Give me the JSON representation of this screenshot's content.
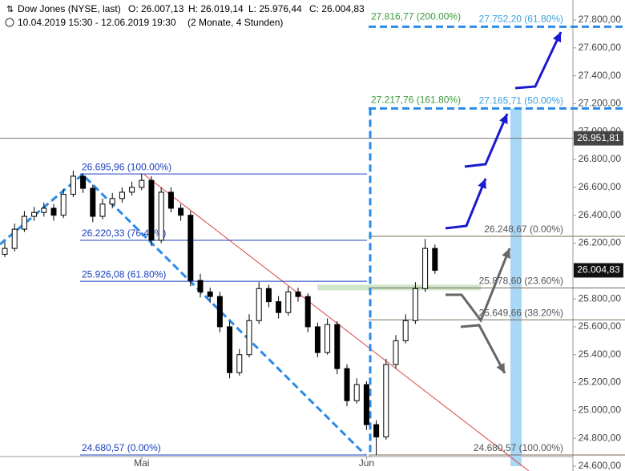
{
  "chart_data": {
    "type": "candlestick",
    "title": "Dow Jones (NYSE, last)",
    "ohlc_header": [
      "O: 26.007,13",
      "H: 26.019,14",
      "L: 25.976,44",
      "C: 26.004,83"
    ],
    "subtitle": "10.04.2019 15:30 - 12.06.2019 19:30",
    "period": "(2 Monate, 4 Stunden)",
    "categories": [
      null,
      null,
      null,
      null,
      null,
      null,
      null,
      null,
      null,
      null,
      null,
      null,
      null,
      null,
      "Mai",
      null,
      null,
      null,
      null,
      null,
      null,
      null,
      null,
      null,
      null,
      null,
      null,
      null,
      null,
      null,
      null,
      null,
      null,
      null,
      null,
      null,
      null,
      "Jun",
      null,
      null,
      null,
      null,
      null,
      null,
      null
    ],
    "values": [
      [
        26120,
        26210,
        26100,
        26162
      ],
      [
        26162,
        26340,
        26140,
        26300
      ],
      [
        26300,
        26430,
        26280,
        26392
      ],
      [
        26392,
        26460,
        26360,
        26420
      ],
      [
        26420,
        26490,
        26390,
        26450
      ],
      [
        26450,
        26480,
        26360,
        26400
      ],
      [
        26400,
        26590,
        26380,
        26550
      ],
      [
        26550,
        26720,
        26530,
        26680
      ],
      [
        26680,
        26700,
        26560,
        26593
      ],
      [
        26593,
        26620,
        26350,
        26392
      ],
      [
        26392,
        26520,
        26370,
        26480
      ],
      [
        26480,
        26560,
        26450,
        26520
      ],
      [
        26520,
        26600,
        26490,
        26565
      ],
      [
        26565,
        26640,
        26540,
        26600
      ],
      [
        26600,
        26700,
        26580,
        26650
      ],
      [
        26650,
        26680,
        26180,
        26220
      ],
      [
        26220,
        26600,
        26200,
        26565
      ],
      [
        26565,
        26600,
        26420,
        26450
      ],
      [
        26450,
        26480,
        26360,
        26400
      ],
      [
        26400,
        26430,
        25890,
        25932
      ],
      [
        25932,
        25980,
        25810,
        25850
      ],
      [
        25850,
        25880,
        25770,
        25817
      ],
      [
        25817,
        25850,
        25560,
        25600
      ],
      [
        25600,
        25640,
        25230,
        25271
      ],
      [
        25271,
        25440,
        25250,
        25400
      ],
      [
        25400,
        25690,
        25380,
        25644
      ],
      [
        25644,
        25920,
        25620,
        25874
      ],
      [
        25874,
        25900,
        25740,
        25780
      ],
      [
        25780,
        25820,
        25660,
        25702
      ],
      [
        25702,
        25890,
        25680,
        25850
      ],
      [
        25850,
        25880,
        25780,
        25817
      ],
      [
        25817,
        25840,
        25560,
        25600
      ],
      [
        25600,
        25630,
        25380,
        25415
      ],
      [
        25415,
        25660,
        25400,
        25616
      ],
      [
        25616,
        25640,
        25260,
        25300
      ],
      [
        25300,
        25330,
        25030,
        25070
      ],
      [
        25070,
        25230,
        25050,
        25185
      ],
      [
        25185,
        25210,
        24860,
        24898
      ],
      [
        24898,
        24930,
        24680,
        24810
      ],
      [
        24810,
        25370,
        24790,
        25329
      ],
      [
        25329,
        25540,
        25300,
        25500
      ],
      [
        25500,
        25690,
        25480,
        25644
      ],
      [
        25644,
        25920,
        25620,
        25874
      ],
      [
        25874,
        26230,
        25850,
        26162
      ],
      [
        26162,
        26190,
        25980,
        26005
      ]
    ],
    "ylim": [
      24600,
      27800
    ],
    "yticks": [
      {
        "value": 24600,
        "label": "24.600,00"
      },
      {
        "value": 24800,
        "label": "24.800,00"
      },
      {
        "value": 25000,
        "label": "25.000,00"
      },
      {
        "value": 25200,
        "label": "25.200,00"
      },
      {
        "value": 25400,
        "label": "25.400,00"
      },
      {
        "value": 25600,
        "label": "25.600,00"
      },
      {
        "value": 25800,
        "label": "25.800,00"
      },
      {
        "value": 26000,
        "label": "26.000,00"
      },
      {
        "value": 26200,
        "label": "26.200,00"
      },
      {
        "value": 26400,
        "label": "26.400,00"
      },
      {
        "value": 26600,
        "label": "26.600,00"
      },
      {
        "value": 26800,
        "label": "26.800,00"
      },
      {
        "value": 27000,
        "label": "27.000,00"
      },
      {
        "value": 27200,
        "label": "27.200,00"
      },
      {
        "value": 27400,
        "label": "27.400,00"
      },
      {
        "value": 27600,
        "label": "27.600,00"
      },
      {
        "value": 27800,
        "label": "27.800,00"
      }
    ],
    "fib_retracement": [
      {
        "value": 26695.96,
        "label": "26.695,96 (100.00%)"
      },
      {
        "value": 26220.33,
        "label": "26.220,33 (76.40%)"
      },
      {
        "value": 25926.08,
        "label": "25.926,08 (61.80%)"
      },
      {
        "value": 24680.57,
        "label": "24.680,57 (0.00%)"
      }
    ],
    "fib_projection": [
      {
        "value": 26248.67,
        "label": "26.248,67 (0.00%)"
      },
      {
        "value": 25878.6,
        "label": "25.878,60 (23.60%)"
      },
      {
        "value": 25649.66,
        "label": "25.649,66 (38.20%)"
      },
      {
        "value": 24680.57,
        "label": "24.680,57 (100.00%)"
      }
    ],
    "fib_extension": [
      {
        "value": 27816.77,
        "label": "27.816,77 (200.00%)"
      },
      {
        "value": 27217.76,
        "label": "27.217,76 (161.80%)"
      }
    ],
    "targets": [
      {
        "value": 27752.2,
        "label": "27.752,20 (61.80%)"
      },
      {
        "value": 27165.71,
        "label": "27.165,71 (50.00%)"
      }
    ],
    "level": {
      "value": 26951.81,
      "label": "26.951,81"
    },
    "last": {
      "value": 26004.83,
      "label": "26.004,83"
    }
  }
}
